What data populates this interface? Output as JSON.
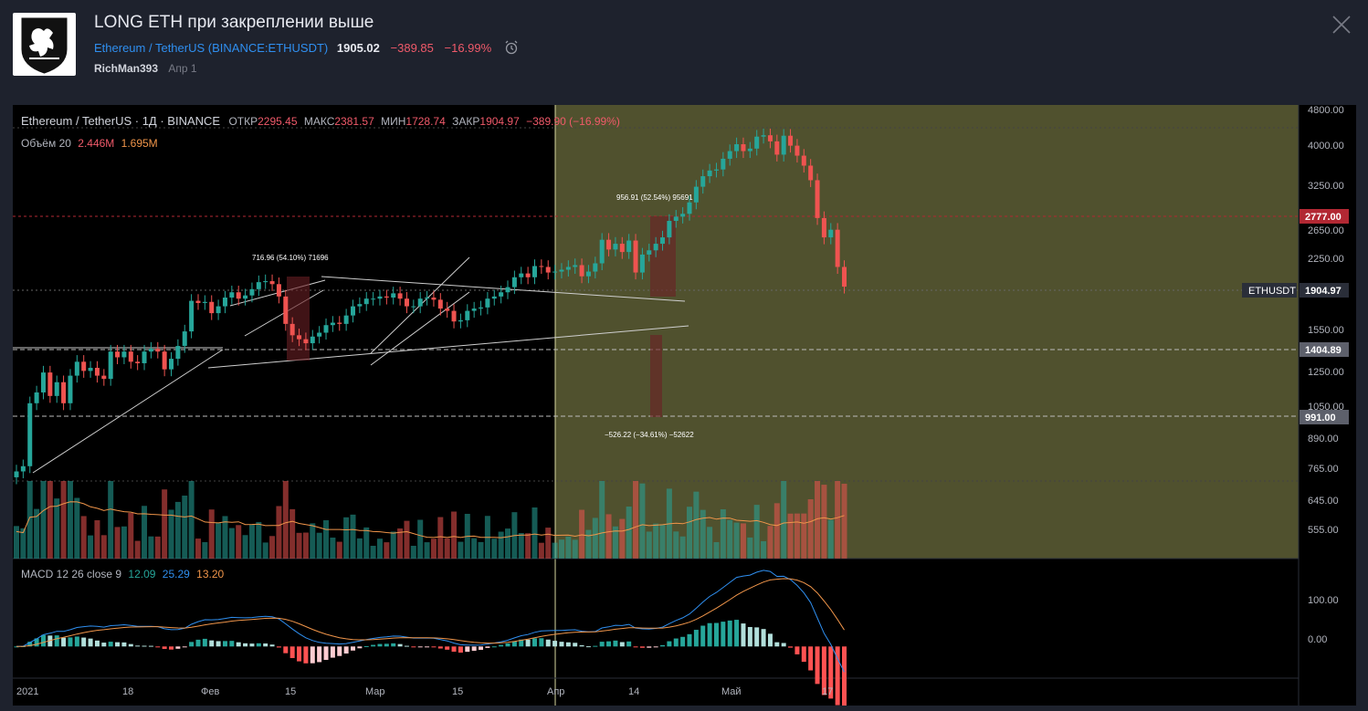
{
  "idea": {
    "title": "LONG ETH при закреплении выше",
    "symbol_name": "Ethereum / TetherUS",
    "symbol_ticker": "BINANCE:ETHUSDT",
    "price": "1905.02",
    "change": "−389.85",
    "change_pct": "−16.99%",
    "author": "RichMan393",
    "date": "Апр 1"
  },
  "legend": {
    "main": "Ethereum / TetherUS · 1Д · BINANCE",
    "open_label": "ОТКР",
    "open": "2295.45",
    "high_label": "МАКС",
    "high": "2381.57",
    "low_label": "МИН",
    "low": "1728.74",
    "close_label": "ЗАКР",
    "close": "1904.97",
    "delta": "−389.90 (−16.99%)",
    "volume_label": "Объём 20",
    "volume_val": "2.446M",
    "volume_ma": "1.695M",
    "macd_label": "MACD 12 26 close 9",
    "macd_hist": "12.09",
    "macd_line": "25.29",
    "macd_signal": "13.20"
  },
  "price_axis": {
    "ticks": [
      "4800.00",
      "4000.00",
      "3250.00",
      "2650.00",
      "2250.00",
      "1550.00",
      "1250.00",
      "1050.00",
      "890.00",
      "765.00",
      "645.00",
      "555.00"
    ],
    "labels": {
      "resistance": "2777.00",
      "symbol": "ETHUSDT",
      "last": "1904.97",
      "support1": "1404.89",
      "support2": "991.00"
    }
  },
  "macd_axis": {
    "ticks": [
      "100.00",
      "0.00"
    ]
  },
  "time_axis": {
    "ticks": [
      "2021",
      "18",
      "Фев",
      "15",
      "Мар",
      "15",
      "Апр",
      "14",
      "Май",
      "17"
    ]
  },
  "annotations": {
    "measure1": "716.96 (54.10%) 71696",
    "measure2": "956.91 (52.54%) 95691",
    "measure3": "−526.22 (−34.61%) −52622"
  },
  "colors": {
    "up": "#26a69a",
    "down": "#ef5350",
    "forecast_bg": "#50512e",
    "resistance": "#b22833",
    "accent": "#2f8ff0"
  },
  "chart_data": {
    "type": "candlestick",
    "symbol": "ETHUSDT",
    "interval": "1D",
    "x_range": [
      "2021-01-01",
      "2021-05-24"
    ],
    "y_scale": "log",
    "ylim": [
      480,
      4800
    ],
    "closes": [
      730,
      750,
      1040,
      1100,
      1220,
      1080,
      1160,
      1040,
      1200,
      1290,
      1230,
      1250,
      1200,
      1180,
      1360,
      1320,
      1360,
      1290,
      1280,
      1360,
      1380,
      1360,
      1240,
      1310,
      1400,
      1510,
      1770,
      1750,
      1760,
      1660,
      1720,
      1800,
      1850,
      1790,
      1820,
      1880,
      1950,
      1960,
      1930,
      1810,
      1570,
      1480,
      1450,
      1420,
      1470,
      1500,
      1560,
      1580,
      1570,
      1640,
      1720,
      1740,
      1790,
      1790,
      1810,
      1800,
      1840,
      1790,
      1720,
      1720,
      1790,
      1800,
      1780,
      1700,
      1680,
      1590,
      1600,
      1680,
      1700,
      1710,
      1790,
      1810,
      1850,
      1900,
      2000,
      2040,
      2000,
      2120,
      2110,
      2050,
      2060,
      2080,
      2110,
      2130,
      2010,
      2060,
      2150,
      2430,
      2310,
      2380,
      2280,
      2420,
      2050,
      2250,
      2300,
      2380,
      2460,
      2680,
      2740,
      2780,
      2950,
      3200,
      3380,
      3480,
      3500,
      3700,
      3850,
      3990,
      3850,
      3900,
      4150,
      4180,
      4050,
      3780,
      4170,
      3960,
      3760,
      3570,
      3310,
      2720,
      2460,
      2560,
      2110,
      1905
    ],
    "volume_series": {
      "name": "Объём 20",
      "latest": "2.446M",
      "ma": "1.695M"
    },
    "macd": {
      "params": "12 26 close 9",
      "histogram": 12.09,
      "macd": 25.29,
      "signal": 13.2,
      "ylim": [
        -60,
        170
      ]
    },
    "levels": [
      2777.0,
      1904.97,
      1404.89,
      991.0
    ],
    "measurements": [
      "716.96 (54.10%) 71696",
      "956.91 (52.54%) 95691",
      "−526.22 (−34.61%) −52622"
    ]
  }
}
